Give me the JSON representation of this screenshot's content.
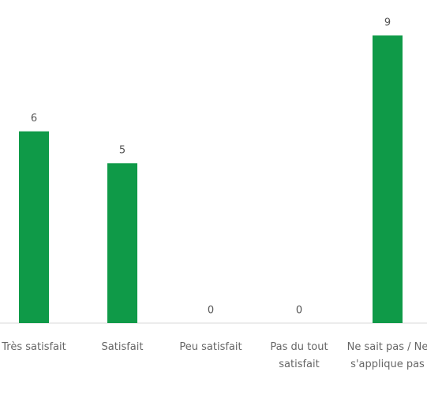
{
  "chart_data": {
    "type": "bar",
    "categories": [
      "Très satisfait",
      "Satisfait",
      "Peu satisfait",
      "Pas du tout satisfait",
      "Ne sait pas / Ne s'applique pas"
    ],
    "values": [
      6,
      5,
      0,
      0,
      9
    ],
    "color": "#0f9a48"
  }
}
